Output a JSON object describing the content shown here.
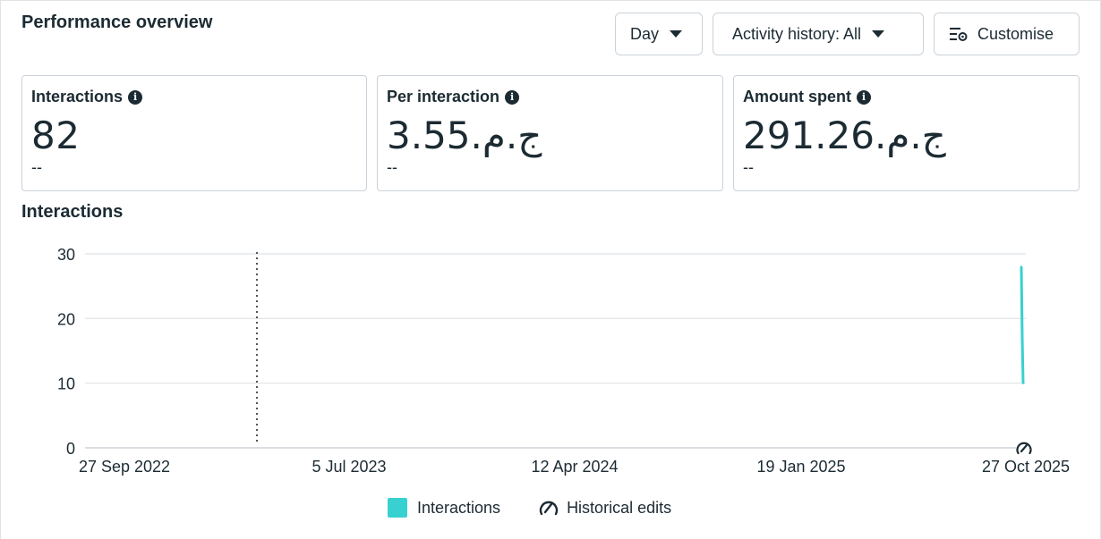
{
  "header": {
    "title": "Performance overview"
  },
  "controls": {
    "day_label": "Day",
    "activity_label": "Activity history: All",
    "customise_label": "Customise"
  },
  "cards": [
    {
      "label": "Interactions",
      "value": "82",
      "delta": "--"
    },
    {
      "label": "Per interaction",
      "value": "3.55.ج.م",
      "delta": "--"
    },
    {
      "label": "Amount spent",
      "value": "291.26.ج.م",
      "delta": "--"
    }
  ],
  "section": {
    "title": "Interactions"
  },
  "legend": {
    "series": "Interactions",
    "edits": "Historical edits"
  },
  "colors": {
    "series": "#38d0d0",
    "text": "#1c2b33",
    "grid": "#dfe3e6"
  },
  "chart_data": {
    "type": "line",
    "x_tick_labels": [
      "27 Sep 2022",
      "5 Jul 2023",
      "12 Apr 2024",
      "19 Jan 2025",
      "27 Oct 2025"
    ],
    "y_tick_labels": [
      "0",
      "10",
      "20",
      "30"
    ],
    "ylim": [
      0,
      30
    ],
    "grid": true,
    "series": [
      {
        "name": "Interactions",
        "values": [
          28,
          17,
          10
        ]
      }
    ],
    "annotations": [
      "historical edit marker at 27 Oct 2025"
    ],
    "legend_position": "bottom"
  }
}
